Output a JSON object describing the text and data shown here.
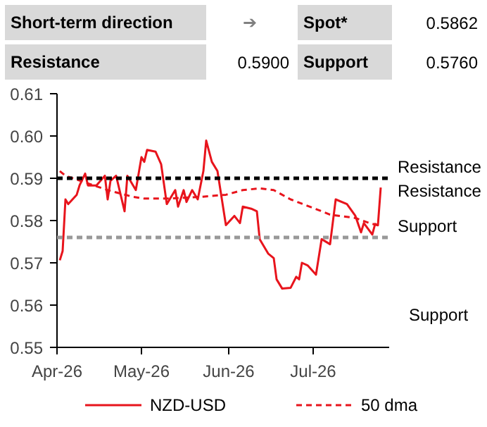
{
  "chart_data": {
    "type": "line",
    "annotations": [
      "Short-term direction",
      "➔",
      "Spot*",
      "0.5862",
      "Resistance",
      "0.5900",
      "Support",
      "0.5760",
      "Resistance",
      "Support"
    ],
    "series": [
      {
        "name": "NZD-USD",
        "color": "#e8141c",
        "line_style": "solid",
        "x": [
          "2026-04-02",
          "2026-04-03",
          "2026-04-04",
          "2026-04-05",
          "2026-04-08",
          "2026-04-09",
          "2026-04-11",
          "2026-04-12",
          "2026-04-15",
          "2026-04-18",
          "2026-04-19",
          "2026-04-20",
          "2026-04-22",
          "2026-04-25",
          "2026-04-26",
          "2026-04-29",
          "2026-05-01",
          "2026-05-02",
          "2026-05-03",
          "2026-05-06",
          "2026-05-08",
          "2026-05-10",
          "2026-05-13",
          "2026-05-14",
          "2026-05-16",
          "2026-05-17",
          "2026-05-19",
          "2026-05-21",
          "2026-05-23",
          "2026-05-24",
          "2026-05-26",
          "2026-05-28",
          "2026-05-31",
          "2026-06-03",
          "2026-06-05",
          "2026-06-06",
          "2026-06-09",
          "2026-06-11",
          "2026-06-12",
          "2026-06-15",
          "2026-06-17",
          "2026-06-18",
          "2026-06-20",
          "2026-06-23",
          "2026-06-25",
          "2026-06-26",
          "2026-06-27",
          "2026-06-29",
          "2026-07-02",
          "2026-07-04",
          "2026-07-07",
          "2026-07-09",
          "2026-07-13",
          "2026-07-16",
          "2026-07-18",
          "2026-07-19",
          "2026-07-22",
          "2026-07-23",
          "2026-07-24",
          "2026-07-25"
        ],
        "values": [
          0.5706,
          0.5728,
          0.585,
          0.5839,
          0.5861,
          0.5883,
          0.5911,
          0.5883,
          0.5883,
          0.5906,
          0.585,
          0.5894,
          0.5906,
          0.5822,
          0.5906,
          0.5872,
          0.595,
          0.5939,
          0.5967,
          0.5963,
          0.5933,
          0.5839,
          0.5872,
          0.5833,
          0.5872,
          0.5844,
          0.5872,
          0.585,
          0.5917,
          0.5989,
          0.5939,
          0.5917,
          0.5789,
          0.5811,
          0.5794,
          0.5833,
          0.5828,
          0.5822,
          0.5756,
          0.5722,
          0.5711,
          0.5661,
          0.5639,
          0.5641,
          0.5667,
          0.5661,
          0.57,
          0.5694,
          0.5672,
          0.5756,
          0.5744,
          0.585,
          0.5839,
          0.5811,
          0.5772,
          0.5794,
          0.5767,
          0.5792,
          0.5789,
          0.5878
        ]
      },
      {
        "name": "50 dma",
        "color": "#e8141c",
        "line_style": "dashed",
        "x": [
          "2026-04-02",
          "2026-04-04",
          "2026-04-19",
          "2026-04-28",
          "2026-05-02",
          "2026-05-11",
          "2026-05-22",
          "2026-05-31",
          "2026-06-06",
          "2026-06-12",
          "2026-06-17",
          "2026-06-23",
          "2026-07-04",
          "2026-07-07",
          "2026-07-16",
          "2026-07-21",
          "2026-07-25"
        ],
        "values": [
          0.5917,
          0.5906,
          0.5872,
          0.5856,
          0.5852,
          0.5852,
          0.5856,
          0.5861,
          0.5872,
          0.5876,
          0.5872,
          0.585,
          0.5822,
          0.5814,
          0.5806,
          0.5794,
          0.5787
        ]
      }
    ],
    "ref_lines": [
      {
        "axis": "y",
        "value": 0.59,
        "label": "Resistance",
        "color": "#000000",
        "line_style": "dashed"
      },
      {
        "axis": "y",
        "value": 0.576,
        "label": "Support",
        "color": "#999999",
        "line_style": "dashed"
      }
    ],
    "xlim": [
      "2026-04-01",
      "2026-07-28"
    ],
    "xticks": [
      {
        "value": "2026-04-01",
        "label": "Apr-26"
      },
      {
        "value": "2026-05-01",
        "label": "May-26"
      },
      {
        "value": "2026-06-01",
        "label": "Jun-26"
      },
      {
        "value": "2026-07-01",
        "label": "Jul-26"
      }
    ],
    "ylim": [
      0.55,
      0.61
    ],
    "yticks": [
      0.55,
      0.56,
      0.57,
      0.58,
      0.59,
      {
        "value": 0.6,
        "label": "0.60"
      },
      0.61
    ],
    "grid": false,
    "legend": "bottom",
    "marker": "none"
  }
}
